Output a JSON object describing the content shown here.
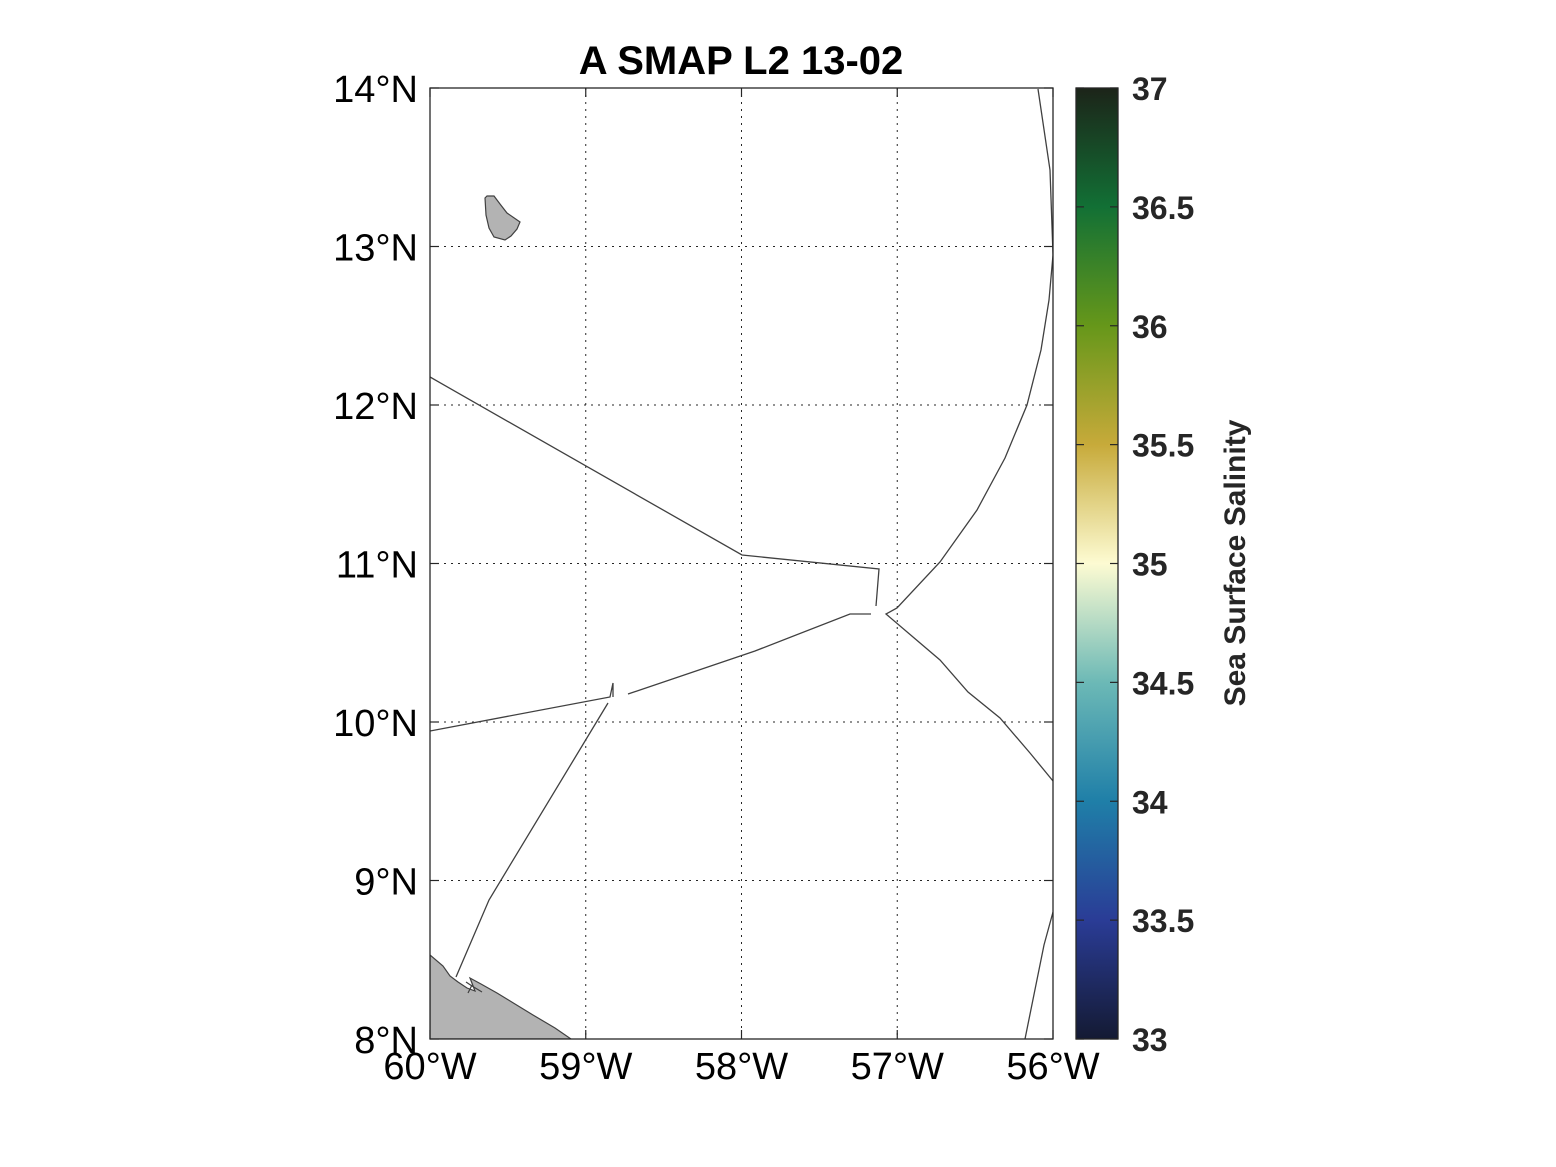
{
  "title": "A SMAP L2 13-02",
  "map": {
    "lon_range": [
      -60,
      -56
    ],
    "lat_range": [
      8,
      14
    ],
    "x_ticks": [
      {
        "value": -60,
        "label": "60°W"
      },
      {
        "value": -59,
        "label": "59°W"
      },
      {
        "value": -58,
        "label": "58°W"
      },
      {
        "value": -57,
        "label": "57°W"
      },
      {
        "value": -56,
        "label": "56°W"
      }
    ],
    "y_ticks": [
      {
        "value": 14,
        "label": "14°N"
      },
      {
        "value": 13,
        "label": "13°N"
      },
      {
        "value": 12,
        "label": "12°N"
      },
      {
        "value": 11,
        "label": "11°N"
      },
      {
        "value": 10,
        "label": "10°N"
      },
      {
        "value": 9,
        "label": "9°N"
      },
      {
        "value": 8,
        "label": "8°N"
      }
    ],
    "grid": "dotted",
    "land_color": "#b3b3b3",
    "line_color": "#404040"
  },
  "colorbar": {
    "label": "Sea Surface Salinity",
    "range": [
      33,
      37
    ],
    "ticks": [
      {
        "value": 37,
        "label": "37"
      },
      {
        "value": 36.5,
        "label": "36.5"
      },
      {
        "value": 36,
        "label": "36"
      },
      {
        "value": 35.5,
        "label": "35.5"
      },
      {
        "value": 35,
        "label": "35"
      },
      {
        "value": 34.5,
        "label": "34.5"
      },
      {
        "value": 34,
        "label": "34"
      },
      {
        "value": 33.5,
        "label": "33.5"
      },
      {
        "value": 33,
        "label": "33"
      }
    ],
    "colormap": [
      {
        "value": 33,
        "color": "#141a33"
      },
      {
        "value": 33.5,
        "color": "#2a3c96"
      },
      {
        "value": 34,
        "color": "#1f7fa8"
      },
      {
        "value": 34.5,
        "color": "#6cb9b6"
      },
      {
        "value": 35,
        "color": "#fdfbd2"
      },
      {
        "value": 35.5,
        "color": "#c7aa3a"
      },
      {
        "value": 36,
        "color": "#66971a"
      },
      {
        "value": 36.5,
        "color": "#127035"
      },
      {
        "value": 37,
        "color": "#1c2419"
      }
    ]
  }
}
